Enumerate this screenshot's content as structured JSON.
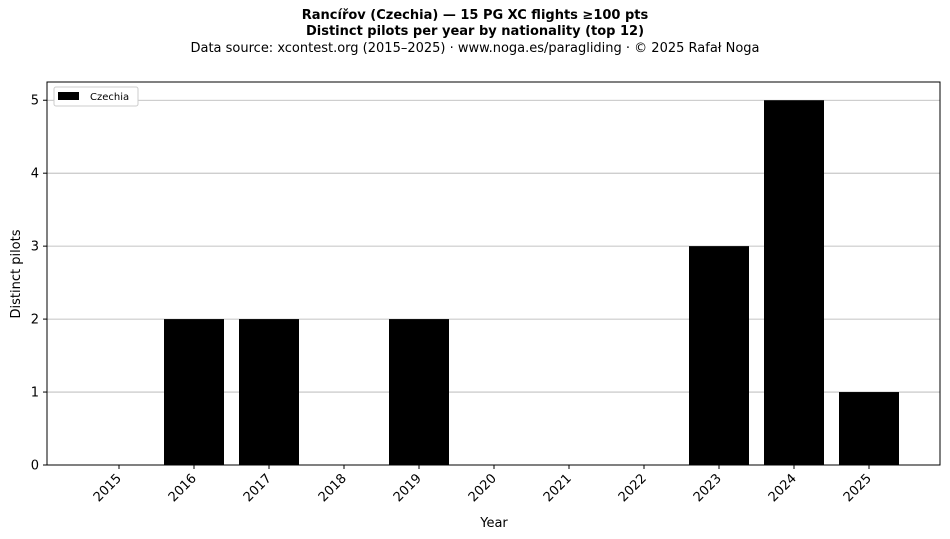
{
  "chart_data": {
    "type": "bar",
    "title": "Rancířov (Czechia)  —  15 PG XC flights ≥100 pts",
    "subtitle": "Distinct pilots per year by nationality (top 12)",
    "source": "Data source: xcontest.org (2015–2025)  ·  www.noga.es/paragliding  ·  © 2025 Rafał Noga",
    "xlabel": "Year",
    "ylabel": "Distinct pilots",
    "categories": [
      "2015",
      "2016",
      "2017",
      "2018",
      "2019",
      "2020",
      "2021",
      "2022",
      "2023",
      "2024",
      "2025"
    ],
    "series": [
      {
        "name": "Czechia",
        "values": [
          0,
          2,
          2,
          0,
          2,
          0,
          0,
          0,
          3,
          5,
          1
        ],
        "color": "#000000"
      }
    ],
    "ylim": [
      0,
      5.25
    ],
    "yticks": [
      0,
      1,
      2,
      3,
      4,
      5
    ],
    "grid": "y",
    "legend": "top-left"
  }
}
